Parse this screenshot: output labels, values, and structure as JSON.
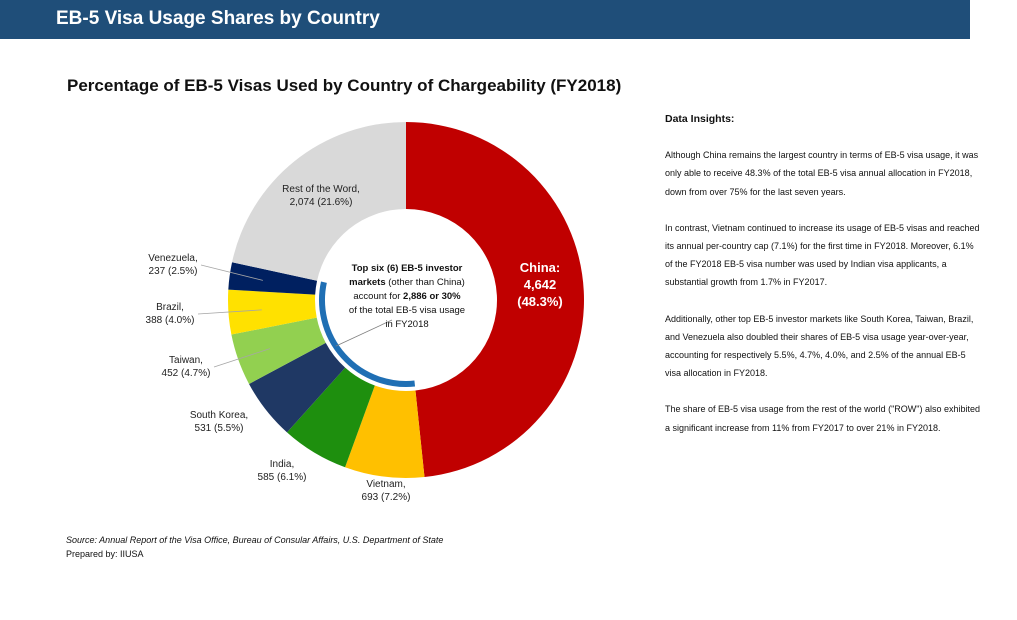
{
  "header": {
    "title": "EB-5 Visa Usage Shares by Country"
  },
  "chart_data": {
    "type": "pie",
    "title": "Percentage of EB-5 Visas Used by Country of Chargeability (FY2018)",
    "slices": [
      {
        "name": "China",
        "value": 4642,
        "label": "4,642",
        "pct": "(48.3%)",
        "color": "#c00000"
      },
      {
        "name": "Vietnam",
        "value": 693,
        "label": "693 (7.2%)",
        "color": "#ffc000"
      },
      {
        "name": "India",
        "value": 585,
        "label": "585 (6.1%)",
        "color": "#1e8f0e"
      },
      {
        "name": "South Korea",
        "value": 531,
        "label": "531 (5.5%)",
        "color": "#1f3864"
      },
      {
        "name": "Taiwan",
        "value": 452,
        "label": "452 (4.7%)",
        "color": "#92d050"
      },
      {
        "name": "Brazil",
        "value": 388,
        "label": "388 (4.0%)",
        "color": "#ffe100"
      },
      {
        "name": "Venezuela",
        "value": 237,
        "label": "237 (2.5%)",
        "color": "#002060"
      },
      {
        "name": "Rest of the Word",
        "value": 2074,
        "label": "2,074 (21.6%)",
        "color": "#d9d9d9"
      }
    ],
    "center_note": {
      "line1": "Top six (6) EB-5 investor",
      "line2a": "markets",
      "line2b": " (other than China)",
      "line3": "account for ",
      "highlight": "2,886 or 30%",
      "line4": "of the total EB-5 visa usage",
      "line5": "in FY2018"
    },
    "highlight_arc_color": "#1f6fb4"
  },
  "insights": {
    "title": "Data Insights:",
    "paragraphs": [
      "Although China remains the largest country in terms of EB-5 visa usage, it was only able to receive 48.3% of the total EB-5 visa annual allocation in FY2018, down from over 75% for the last seven years.",
      "In contrast, Vietnam continued to increase its usage of EB-5 visas and reached its annual per-country cap (7.1%) for the first time in FY2018. Moreover, 6.1% of the FY2018 EB-5 visa number was used by Indian visa applicants, a substantial growth from 1.7% in FY2017.",
      "Additionally, other top EB-5 investor markets like South Korea, Taiwan, Brazil, and Venezuela also doubled their shares of EB-5 visa usage year-over-year, accounting for respectively 5.5%, 4.7%, 4.0%, and 2.5% of the annual EB-5 visa allocation in FY2018.",
      "The share of EB-5 visa usage from the rest of the world (\"ROW\") also exhibited a significant increase from 11% from FY2017 to over 21% in FY2018."
    ]
  },
  "footer": {
    "source": "Source: Annual Report of the Visa Office, Bureau of Consular Affairs, U.S. Department of State",
    "prepared": "Prepared by: IIUSA"
  }
}
